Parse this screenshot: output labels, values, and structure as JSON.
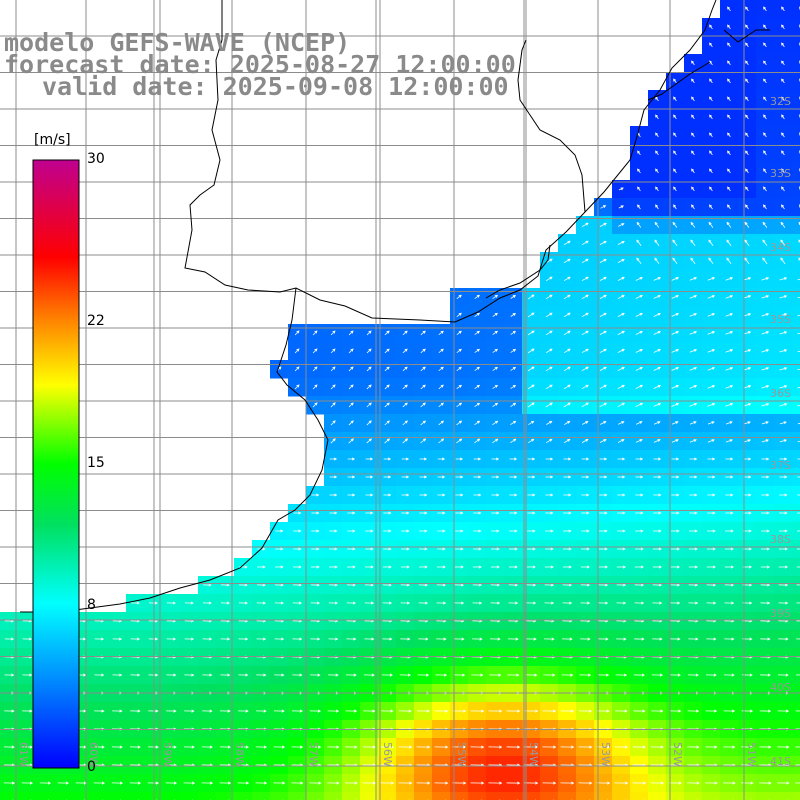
{
  "title": {
    "model": "modelo GEFS-WAVE (NCEP)",
    "forecast": "forecast date: 2025-08-27 12:00:00",
    "valid": "valid date: 2025-09-08 12:00:00"
  },
  "colorbar": {
    "unit": "[m/s]",
    "min": 0,
    "max": 30,
    "ticks": [
      {
        "label": "30",
        "value": 30
      },
      {
        "label": "22",
        "value": 22
      },
      {
        "label": "15",
        "value": 15
      },
      {
        "label": "8",
        "value": 8
      },
      {
        "label": "0",
        "value": 0
      }
    ],
    "stops": [
      "#0000ff",
      "#0090ff",
      "#00ffff",
      "#00e060",
      "#00ff00",
      "#ffff00",
      "#ff8000",
      "#ff0000",
      "#d00070",
      "#c00090"
    ]
  },
  "grid": {
    "lon_labels": [
      "61W",
      "60W",
      "59W",
      "58W",
      "57W",
      "56W",
      "55W",
      "54W",
      "53W",
      "52W",
      "51W"
    ],
    "lat_labels": [
      "32S",
      "33S",
      "34S",
      "35S",
      "36S",
      "37S",
      "38S",
      "39S",
      "40S",
      "41S"
    ]
  }
}
